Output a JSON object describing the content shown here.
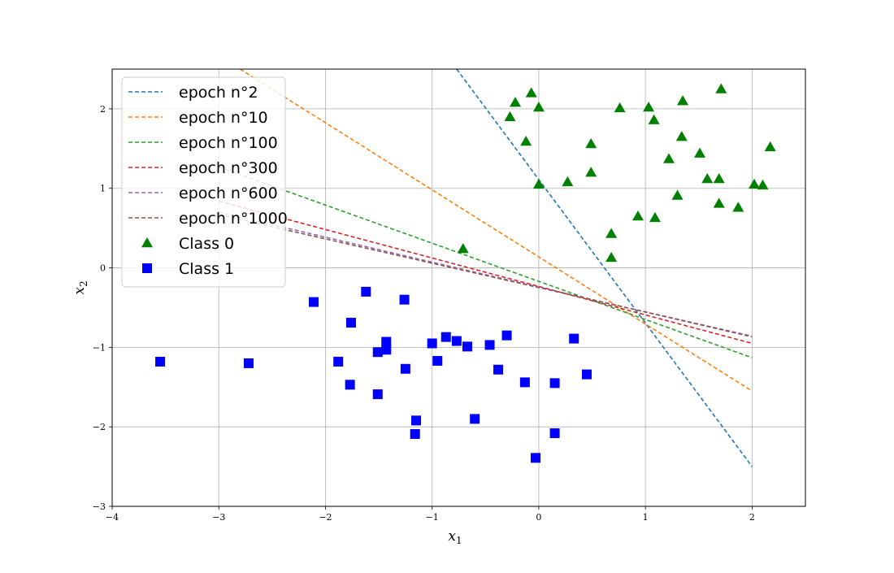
{
  "chart_data": {
    "type": "scatter",
    "xlabel": "x",
    "xlabel_sub": "1",
    "ylabel": "x",
    "ylabel_sub": "2",
    "xlim": [
      -4,
      2.5
    ],
    "ylim": [
      -3,
      2.5
    ],
    "xticks": [
      -4,
      -3,
      -2,
      -1,
      0,
      1,
      2
    ],
    "yticks": [
      -3,
      -2,
      -1,
      0,
      1,
      2
    ],
    "xtick_labels": [
      "−4",
      "−3",
      "−2",
      "−1",
      "0",
      "1",
      "2"
    ],
    "ytick_labels": [
      "−3",
      "−2",
      "−1",
      "0",
      "1",
      "2"
    ],
    "grid": true,
    "legend_position": "upper-left",
    "lines": [
      {
        "name": "epoch n°2",
        "color": "#1f77b4",
        "points": [
          [
            -0.77,
            2.5
          ],
          [
            2.0,
            -2.5
          ]
        ]
      },
      {
        "name": "epoch n°10",
        "color": "#ff7f0e",
        "points": [
          [
            -2.8,
            2.5
          ],
          [
            2.0,
            -1.55
          ]
        ]
      },
      {
        "name": "epoch n°100",
        "color": "#2ca02c",
        "points": [
          [
            -3.0,
            1.27
          ],
          [
            2.0,
            -1.13
          ]
        ]
      },
      {
        "name": "epoch n°300",
        "color": "#d62728",
        "points": [
          [
            -3.0,
            0.84
          ],
          [
            2.0,
            -0.95
          ]
        ]
      },
      {
        "name": "epoch n°600",
        "color": "#9467bd",
        "points": [
          [
            -3.0,
            0.7
          ],
          [
            2.0,
            -0.87
          ]
        ]
      },
      {
        "name": "epoch n°1000",
        "color": "#8c564b",
        "points": [
          [
            -3.0,
            0.67
          ],
          [
            2.0,
            -0.86
          ]
        ]
      }
    ],
    "series": [
      {
        "name": "Class 0",
        "color": "#008000",
        "marker": "triangle",
        "points": [
          [
            -0.07,
            2.2
          ],
          [
            -0.22,
            2.08
          ],
          [
            -0.27,
            1.9
          ],
          [
            0.0,
            2.02
          ],
          [
            -0.12,
            1.59
          ],
          [
            0.0,
            1.05
          ],
          [
            0.27,
            1.08
          ],
          [
            0.49,
            1.56
          ],
          [
            0.49,
            1.2
          ],
          [
            0.76,
            2.01
          ],
          [
            1.03,
            2.02
          ],
          [
            1.08,
            1.86
          ],
          [
            1.35,
            2.1
          ],
          [
            1.71,
            2.25
          ],
          [
            1.34,
            1.65
          ],
          [
            1.22,
            1.37
          ],
          [
            1.51,
            1.44
          ],
          [
            1.58,
            1.12
          ],
          [
            1.69,
            1.12
          ],
          [
            2.17,
            1.52
          ],
          [
            2.02,
            1.05
          ],
          [
            2.1,
            1.04
          ],
          [
            1.3,
            0.91
          ],
          [
            1.69,
            0.81
          ],
          [
            1.87,
            0.76
          ],
          [
            0.93,
            0.65
          ],
          [
            1.09,
            0.63
          ],
          [
            0.68,
            0.43
          ],
          [
            0.68,
            0.13
          ],
          [
            -0.71,
            0.24
          ]
        ]
      },
      {
        "name": "Class 1",
        "color": "#0000ff",
        "marker": "square",
        "points": [
          [
            -3.55,
            -1.18
          ],
          [
            -2.72,
            -1.2
          ],
          [
            -2.11,
            -0.43
          ],
          [
            -1.62,
            -0.3
          ],
          [
            -1.26,
            -0.4
          ],
          [
            -1.76,
            -0.69
          ],
          [
            -1.88,
            -1.18
          ],
          [
            -1.77,
            -1.47
          ],
          [
            -1.51,
            -1.06
          ],
          [
            -1.43,
            -1.03
          ],
          [
            -1.43,
            -0.93
          ],
          [
            -1.25,
            -1.27
          ],
          [
            -1.51,
            -1.59
          ],
          [
            -1.15,
            -1.92
          ],
          [
            -1.16,
            -2.09
          ],
          [
            -1.0,
            -0.95
          ],
          [
            -0.95,
            -1.17
          ],
          [
            -0.87,
            -0.87
          ],
          [
            -0.77,
            -0.92
          ],
          [
            -0.67,
            -0.99
          ],
          [
            -0.46,
            -0.97
          ],
          [
            -0.3,
            -0.85
          ],
          [
            -0.38,
            -1.28
          ],
          [
            -0.6,
            -1.9
          ],
          [
            -0.13,
            -1.44
          ],
          [
            0.15,
            -1.45
          ],
          [
            0.33,
            -0.89
          ],
          [
            0.45,
            -1.34
          ],
          [
            0.15,
            -2.08
          ],
          [
            -0.03,
            -2.39
          ]
        ]
      }
    ]
  }
}
